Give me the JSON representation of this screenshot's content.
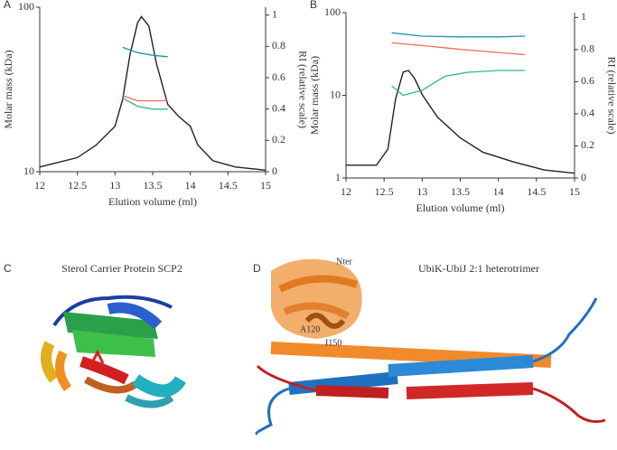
{
  "chart_data": [
    {
      "type": "line",
      "panel_label": "A",
      "xlabel": "Elution volume (ml)",
      "ylabel": "Molar mass (kDa)",
      "y2label": "RI (relative scale)",
      "xlim": [
        12,
        15
      ],
      "xticks": [
        12,
        12.5,
        13,
        13.5,
        14,
        14.5,
        15
      ],
      "ylim": [
        10,
        100
      ],
      "yticks": [
        10,
        100
      ],
      "log_y": true,
      "y2lim": [
        0,
        1.05
      ],
      "y2ticks": [
        0,
        0.2,
        0.4,
        0.6,
        0.8,
        1
      ],
      "series": [
        {
          "color": "#222222",
          "axis": "y2",
          "x": [
            12,
            12.5,
            12.75,
            13,
            13.1,
            13.2,
            13.3,
            13.35,
            13.45,
            13.55,
            13.7,
            13.85,
            14,
            14.1,
            14.3,
            14.6,
            15
          ],
          "values": [
            0.03,
            0.09,
            0.17,
            0.29,
            0.46,
            0.75,
            0.95,
            0.99,
            0.93,
            0.69,
            0.43,
            0.35,
            0.29,
            0.17,
            0.07,
            0.03,
            0.01
          ]
        },
        {
          "color": "#1f93a8",
          "x": [
            13.1,
            13.3,
            13.5,
            13.7
          ],
          "values": [
            57,
            53,
            51,
            50
          ]
        },
        {
          "color": "#ee6a5b",
          "x": [
            13.1,
            13.3,
            13.5,
            13.7
          ],
          "values": [
            29,
            27,
            27,
            27
          ]
        },
        {
          "color": "#2db98a",
          "x": [
            13.1,
            13.3,
            13.5,
            13.7
          ],
          "values": [
            28,
            25,
            24,
            24
          ]
        }
      ]
    },
    {
      "type": "line",
      "panel_label": "B",
      "xlabel": "Elution volume (ml)",
      "ylabel": "Molar mass (kDa)",
      "y2label": "RI (relative scale)",
      "xlim": [
        12,
        15
      ],
      "xticks": [
        12,
        12.5,
        13,
        13.5,
        14,
        14.5,
        15
      ],
      "ylim": [
        1,
        100
      ],
      "yticks": [
        1,
        10,
        100
      ],
      "log_y": true,
      "y2lim": [
        0,
        1.03
      ],
      "y2ticks": [
        0,
        0.2,
        0.4,
        0.6,
        0.8,
        1
      ],
      "series": [
        {
          "color": "#222222",
          "axis": "y2",
          "x": [
            12,
            12.4,
            12.55,
            12.65,
            12.75,
            12.82,
            12.9,
            13,
            13.2,
            13.5,
            13.8,
            14.2,
            14.6,
            15
          ],
          "values": [
            0.08,
            0.08,
            0.18,
            0.49,
            0.66,
            0.67,
            0.62,
            0.52,
            0.38,
            0.25,
            0.16,
            0.1,
            0.05,
            0.03
          ]
        },
        {
          "color": "#1f93a8",
          "x": [
            12.6,
            13,
            13.5,
            14,
            14.35
          ],
          "values": [
            57,
            52,
            51,
            51,
            52
          ]
        },
        {
          "color": "#ee6a5b",
          "x": [
            12.6,
            13,
            13.5,
            14,
            14.35
          ],
          "values": [
            43,
            40,
            36,
            33,
            31
          ]
        },
        {
          "color": "#2db98a",
          "x": [
            12.6,
            12.75,
            13,
            13.3,
            13.6,
            14,
            14.35
          ],
          "values": [
            13,
            10,
            11.5,
            17,
            19,
            20,
            20
          ]
        }
      ]
    }
  ],
  "structures": [
    {
      "panel_label": "C",
      "title": "Sterol Carrier Protein SCP2"
    },
    {
      "panel_label": "D",
      "title": "UbiK-UbiJ 2:1 heterotrimer",
      "annotations": [
        "Nter",
        "A120",
        "I150"
      ]
    }
  ]
}
